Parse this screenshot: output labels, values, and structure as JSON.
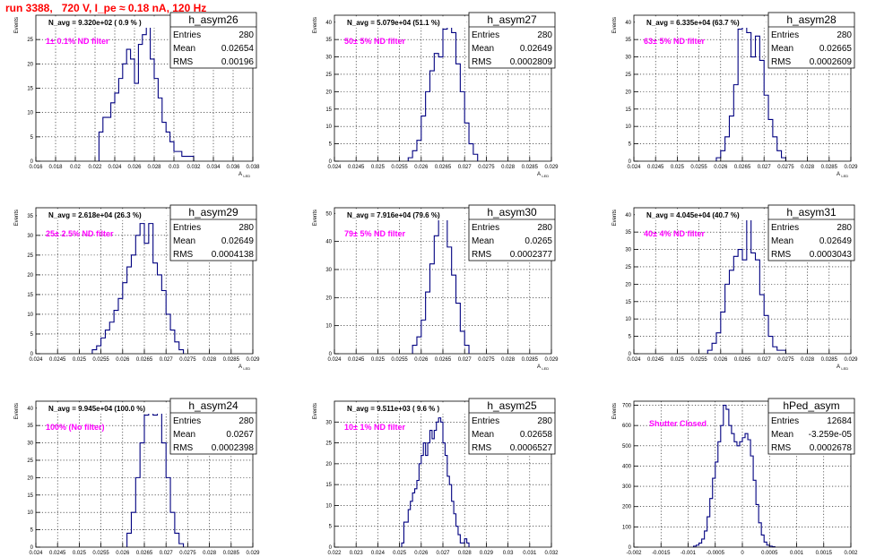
{
  "page": {
    "title": "run 3388,   720 V, I_pe ≈ 0.18 nA, 120 Hz"
  },
  "colors": {
    "title": "#ff0000",
    "label": "#ff00ff",
    "histogram": "#000080",
    "frame": "#000000",
    "grid": "#000000"
  },
  "chart_data": [
    {
      "type": "histogram",
      "name": "h_asym26",
      "stats": {
        "entries": "280",
        "mean": "0.02654",
        "rms": "0.00196"
      },
      "navg": "N_avg = 9.320e+02 ( 0.9 % )",
      "label": "1± 0.1% ND filter",
      "ylabel": "Events",
      "xlabel": "A_LED",
      "grid": true,
      "xlim": [
        0.016,
        0.038
      ],
      "ylim": [
        0,
        30
      ],
      "xticks": [
        0.016,
        0.018,
        0.02,
        0.022,
        0.024,
        0.026,
        0.028,
        0.03,
        0.032,
        0.034,
        0.036,
        0.038
      ],
      "xtick_labels": [
        "0.016",
        "0.018",
        "0.02",
        "0.022",
        "0.024",
        "0.026",
        "0.028",
        "0.03",
        "0.032",
        "0.034",
        "0.036",
        "0.038"
      ],
      "yticks": [
        0,
        5,
        10,
        15,
        20,
        25
      ],
      "ytick_labels": [
        "0",
        "5",
        "10",
        "15",
        "20",
        "25"
      ],
      "bin_edges": [
        0.0224,
        0.0228,
        0.0232,
        0.0236,
        0.024,
        0.0244,
        0.0248,
        0.0252,
        0.0256,
        0.026,
        0.0264,
        0.0268,
        0.0272,
        0.0276,
        0.028,
        0.0284,
        0.0288,
        0.0292,
        0.0296,
        0.03,
        0.0304,
        0.0308,
        0.0312,
        0.0316,
        0.032
      ],
      "counts": [
        6,
        9,
        9,
        12,
        14,
        17,
        20,
        23,
        21,
        16,
        24,
        26,
        28,
        21,
        17,
        13,
        8,
        6,
        4,
        2,
        2,
        1,
        1,
        1
      ]
    },
    {
      "type": "histogram",
      "name": "h_asym27",
      "stats": {
        "entries": "280",
        "mean": "0.02649",
        "rms": "0.0002809"
      },
      "navg": "N_avg = 5.079e+04 (51.1 %)",
      "label": "50± 5% ND filter",
      "ylabel": "Events",
      "xlabel": "A_LED",
      "grid": true,
      "xlim": [
        0.024,
        0.029
      ],
      "ylim": [
        0,
        42
      ],
      "xticks": [
        0.024,
        0.0245,
        0.025,
        0.0255,
        0.026,
        0.0265,
        0.027,
        0.0275,
        0.028,
        0.0285,
        0.029
      ],
      "xtick_labels": [
        "0.024",
        "0.0245",
        "0.025",
        "0.0255",
        "0.026",
        "0.0265",
        "0.027",
        "0.0275",
        "0.028",
        "0.0285",
        "0.029"
      ],
      "yticks": [
        0,
        5,
        10,
        15,
        20,
        25,
        30,
        35,
        40
      ],
      "ytick_labels": [
        "0",
        "5",
        "10",
        "15",
        "20",
        "25",
        "30",
        "35",
        "40"
      ],
      "bin_edges": [
        0.0257,
        0.0258,
        0.0259,
        0.026,
        0.0261,
        0.0262,
        0.0263,
        0.0264,
        0.0265,
        0.0266,
        0.0267,
        0.0268,
        0.0269,
        0.027,
        0.0271,
        0.0272,
        0.0273
      ],
      "counts": [
        1,
        3,
        6,
        13,
        20,
        26,
        31,
        30,
        38,
        40,
        37,
        28,
        20,
        11,
        5,
        2
      ]
    },
    {
      "type": "histogram",
      "name": "h_asym28",
      "stats": {
        "entries": "280",
        "mean": "0.02665",
        "rms": "0.0002609"
      },
      "navg": "N_avg = 6.335e+04 (63.7 %)",
      "label": "63± 5% ND filter",
      "ylabel": "Events",
      "xlabel": "A_LED",
      "grid": true,
      "xlim": [
        0.024,
        0.029
      ],
      "ylim": [
        0,
        42
      ],
      "xticks": [
        0.024,
        0.0245,
        0.025,
        0.0255,
        0.026,
        0.0265,
        0.027,
        0.0275,
        0.028,
        0.0285,
        0.029
      ],
      "xtick_labels": [
        "0.024",
        "0.0245",
        "0.025",
        "0.0255",
        "0.026",
        "0.0265",
        "0.027",
        "0.0275",
        "0.028",
        "0.0285",
        "0.029"
      ],
      "yticks": [
        0,
        5,
        10,
        15,
        20,
        25,
        30,
        35,
        40
      ],
      "ytick_labels": [
        "0",
        "5",
        "10",
        "15",
        "20",
        "25",
        "30",
        "35",
        "40"
      ],
      "bin_edges": [
        0.0259,
        0.026,
        0.0261,
        0.0262,
        0.0263,
        0.0264,
        0.0265,
        0.0266,
        0.0267,
        0.0268,
        0.0269,
        0.027,
        0.0271,
        0.0272,
        0.0273,
        0.0274,
        0.0275
      ],
      "counts": [
        1,
        3,
        7,
        13,
        22,
        38,
        40,
        37,
        30,
        36,
        29,
        19,
        12,
        7,
        3,
        1
      ]
    },
    {
      "type": "histogram",
      "name": "h_asym29",
      "stats": {
        "entries": "280",
        "mean": "0.02649",
        "rms": "0.0004138"
      },
      "navg": "N_avg = 2.618e+04 (26.3 %)",
      "label": "25± 2.5% ND filter",
      "ylabel": "Events",
      "xlabel": "A_LED",
      "grid": true,
      "xlim": [
        0.024,
        0.029
      ],
      "ylim": [
        0,
        37
      ],
      "xticks": [
        0.024,
        0.0245,
        0.025,
        0.0255,
        0.026,
        0.0265,
        0.027,
        0.0275,
        0.028,
        0.0285,
        0.029
      ],
      "xtick_labels": [
        "0.024",
        "0.0245",
        "0.025",
        "0.0255",
        "0.026",
        "0.0265",
        "0.027",
        "0.0275",
        "0.028",
        "0.0285",
        "0.029"
      ],
      "yticks": [
        0,
        5,
        10,
        15,
        20,
        25,
        30,
        35
      ],
      "ytick_labels": [
        "0",
        "5",
        "10",
        "15",
        "20",
        "25",
        "30",
        "35"
      ],
      "bin_edges": [
        0.0253,
        0.0254,
        0.0255,
        0.0256,
        0.0257,
        0.0258,
        0.0259,
        0.026,
        0.0261,
        0.0262,
        0.0263,
        0.0264,
        0.0265,
        0.0266,
        0.0267,
        0.0268,
        0.0269,
        0.027,
        0.0271,
        0.0272,
        0.0273,
        0.0274
      ],
      "counts": [
        1,
        2,
        4,
        6,
        8,
        11,
        14,
        18,
        22,
        25,
        30,
        33,
        28,
        33,
        23,
        20,
        16,
        10,
        6,
        3,
        1
      ]
    },
    {
      "type": "histogram",
      "name": "h_asym30",
      "stats": {
        "entries": "280",
        "mean": "0.0265",
        "rms": "0.0002377"
      },
      "navg": "N_avg = 7.916e+04 (79.6 %)",
      "label": "79± 5% ND filter",
      "ylabel": "Events",
      "xlabel": "A_LED",
      "grid": true,
      "xlim": [
        0.024,
        0.029
      ],
      "ylim": [
        0,
        52
      ],
      "xticks": [
        0.024,
        0.0245,
        0.025,
        0.0255,
        0.026,
        0.0265,
        0.027,
        0.0275,
        0.028,
        0.0285,
        0.029
      ],
      "xtick_labels": [
        "0.024",
        "0.0245",
        "0.025",
        "0.0255",
        "0.026",
        "0.0265",
        "0.027",
        "0.0275",
        "0.028",
        "0.0285",
        "0.029"
      ],
      "yticks": [
        0,
        10,
        20,
        30,
        40,
        50
      ],
      "ytick_labels": [
        "0",
        "10",
        "20",
        "30",
        "40",
        "50"
      ],
      "bin_edges": [
        0.0258,
        0.0259,
        0.026,
        0.0261,
        0.0262,
        0.0263,
        0.0264,
        0.0265,
        0.0266,
        0.0267,
        0.0268,
        0.0269,
        0.027,
        0.0271
      ],
      "counts": [
        3,
        6,
        12,
        22,
        32,
        42,
        48,
        50,
        38,
        28,
        18,
        8,
        3
      ]
    },
    {
      "type": "histogram",
      "name": "h_asym31",
      "stats": {
        "entries": "280",
        "mean": "0.02649",
        "rms": "0.0003043"
      },
      "navg": "N_avg = 4.045e+04 (40.7 %)",
      "label": "40± 4% ND filter",
      "ylabel": "Events",
      "xlabel": "A_LED",
      "grid": true,
      "xlim": [
        0.024,
        0.029
      ],
      "ylim": [
        0,
        42
      ],
      "xticks": [
        0.024,
        0.0245,
        0.025,
        0.0255,
        0.026,
        0.0265,
        0.027,
        0.0275,
        0.028,
        0.0285,
        0.029
      ],
      "xtick_labels": [
        "0.024",
        "0.0245",
        "0.025",
        "0.0255",
        "0.026",
        "0.0265",
        "0.027",
        "0.0275",
        "0.028",
        "0.0285",
        "0.029"
      ],
      "yticks": [
        0,
        5,
        10,
        15,
        20,
        25,
        30,
        35,
        40
      ],
      "ytick_labels": [
        "0",
        "5",
        "10",
        "15",
        "20",
        "25",
        "30",
        "35",
        "40"
      ],
      "bin_edges": [
        0.0257,
        0.0258,
        0.0259,
        0.026,
        0.0261,
        0.0262,
        0.0263,
        0.0264,
        0.0265,
        0.0266,
        0.0267,
        0.0268,
        0.0269,
        0.027,
        0.0271,
        0.0272,
        0.0273,
        0.0274,
        0.0275
      ],
      "counts": [
        1,
        3,
        6,
        12,
        20,
        24,
        28,
        30,
        27,
        39,
        29,
        27,
        17,
        11,
        5,
        2,
        1,
        1
      ]
    },
    {
      "type": "histogram",
      "name": "h_asym24",
      "stats": {
        "entries": "280",
        "mean": "0.0267",
        "rms": "0.0002398"
      },
      "navg": "N_avg = 9.945e+04 (100.0 %)",
      "label": "100% (No filter)",
      "ylabel": "Events",
      "xlabel": "A_LED",
      "grid": true,
      "xlim": [
        0.024,
        0.029
      ],
      "ylim": [
        0,
        42
      ],
      "xticks": [
        0.024,
        0.0245,
        0.025,
        0.0255,
        0.026,
        0.0265,
        0.027,
        0.0275,
        0.028,
        0.0285,
        0.029
      ],
      "xtick_labels": [
        "0.024",
        "0.0245",
        "0.025",
        "0.0255",
        "0.026",
        "0.0265",
        "0.027",
        "0.0275",
        "0.028",
        "0.0285",
        "0.029"
      ],
      "yticks": [
        0,
        5,
        10,
        15,
        20,
        25,
        30,
        35,
        40
      ],
      "ytick_labels": [
        "0",
        "5",
        "10",
        "15",
        "20",
        "25",
        "30",
        "35",
        "40"
      ],
      "bin_edges": [
        0.0261,
        0.0262,
        0.0263,
        0.0264,
        0.0265,
        0.0266,
        0.0267,
        0.0268,
        0.0269,
        0.027,
        0.0271,
        0.0272,
        0.0273,
        0.0274
      ],
      "counts": [
        4,
        10,
        20,
        30,
        38,
        40,
        38,
        40,
        30,
        20,
        10,
        4,
        1
      ]
    },
    {
      "type": "histogram",
      "name": "h_asym25",
      "stats": {
        "entries": "280",
        "mean": "0.02658",
        "rms": "0.0006527"
      },
      "navg": "N_avg = 9.511e+03 ( 9.6 % )",
      "label": "10± 1% ND filter",
      "ylabel": "Events",
      "xlabel": "A_LED",
      "grid": true,
      "xlim": [
        0.022,
        0.032
      ],
      "ylim": [
        0,
        35
      ],
      "xticks": [
        0.022,
        0.023,
        0.024,
        0.025,
        0.026,
        0.027,
        0.028,
        0.029,
        0.03,
        0.031,
        0.032
      ],
      "xtick_labels": [
        "0.022",
        "0.023",
        "0.024",
        "0.025",
        "0.026",
        "0.027",
        "0.028",
        "0.029",
        "0.03",
        "0.031",
        "0.032"
      ],
      "yticks": [
        0,
        5,
        10,
        15,
        20,
        25,
        30
      ],
      "ytick_labels": [
        "0",
        "5",
        "10",
        "15",
        "20",
        "25",
        "30"
      ],
      "bin_edges": [
        0.0251,
        0.0252,
        0.0253,
        0.0254,
        0.0255,
        0.0256,
        0.0257,
        0.0258,
        0.0259,
        0.026,
        0.0261,
        0.0262,
        0.0263,
        0.0264,
        0.0265,
        0.0266,
        0.0267,
        0.0268,
        0.0269,
        0.027,
        0.0271,
        0.0272,
        0.0273,
        0.0274,
        0.0275,
        0.0276,
        0.0277,
        0.0278,
        0.0279,
        0.028,
        0.0281,
        0.0282
      ],
      "counts": [
        1,
        6,
        6,
        9,
        11,
        13,
        14,
        16,
        20,
        22,
        25,
        22,
        25,
        28,
        26,
        28,
        30,
        31,
        30,
        25,
        22,
        17,
        15,
        11,
        8,
        5,
        3,
        1,
        1,
        2,
        1
      ]
    },
    {
      "type": "histogram",
      "name": "hPed_asym",
      "stats": {
        "entries": "12684",
        "mean": "-3.259e-05",
        "rms": "0.0002678"
      },
      "navg": "",
      "label": "Shutter Closed",
      "ylabel": "Events",
      "xlabel": "A_LED",
      "grid": true,
      "xlim": [
        -0.002,
        0.002
      ],
      "ylim": [
        0,
        720
      ],
      "xticks": [
        -0.002,
        -0.0015,
        -0.001,
        -0.0005,
        0,
        0.0005,
        0.001,
        0.0015,
        0.002
      ],
      "xtick_labels": [
        "-0.002",
        "-0.0015",
        "-0.001",
        "-0.0005",
        "0",
        "0.0005",
        "0.001",
        "0.0015",
        "0.002"
      ],
      "yticks": [
        0,
        100,
        200,
        300,
        400,
        500,
        600,
        700
      ],
      "ytick_labels": [
        "0",
        "100",
        "200",
        "300",
        "400",
        "500",
        "600",
        "700"
      ],
      "bin_edges": [
        -0.0009,
        -0.00085,
        -0.0008,
        -0.00075,
        -0.0007,
        -0.00065,
        -0.0006,
        -0.00055,
        -0.0005,
        -0.00045,
        -0.0004,
        -0.00035,
        -0.0003,
        -0.00025,
        -0.0002,
        -0.00015,
        -0.0001,
        -5e-05,
        0,
        5e-05,
        0.0001,
        0.00015,
        0.0002,
        0.00025,
        0.0003,
        0.00035,
        0.0004,
        0.00045,
        0.0005,
        0.00055,
        0.0006
      ],
      "counts": [
        5,
        10,
        20,
        40,
        80,
        150,
        240,
        340,
        420,
        520,
        600,
        700,
        680,
        600,
        560,
        520,
        500,
        520,
        540,
        560,
        530,
        450,
        330,
        210,
        120,
        60,
        25,
        10,
        5,
        2
      ]
    }
  ]
}
